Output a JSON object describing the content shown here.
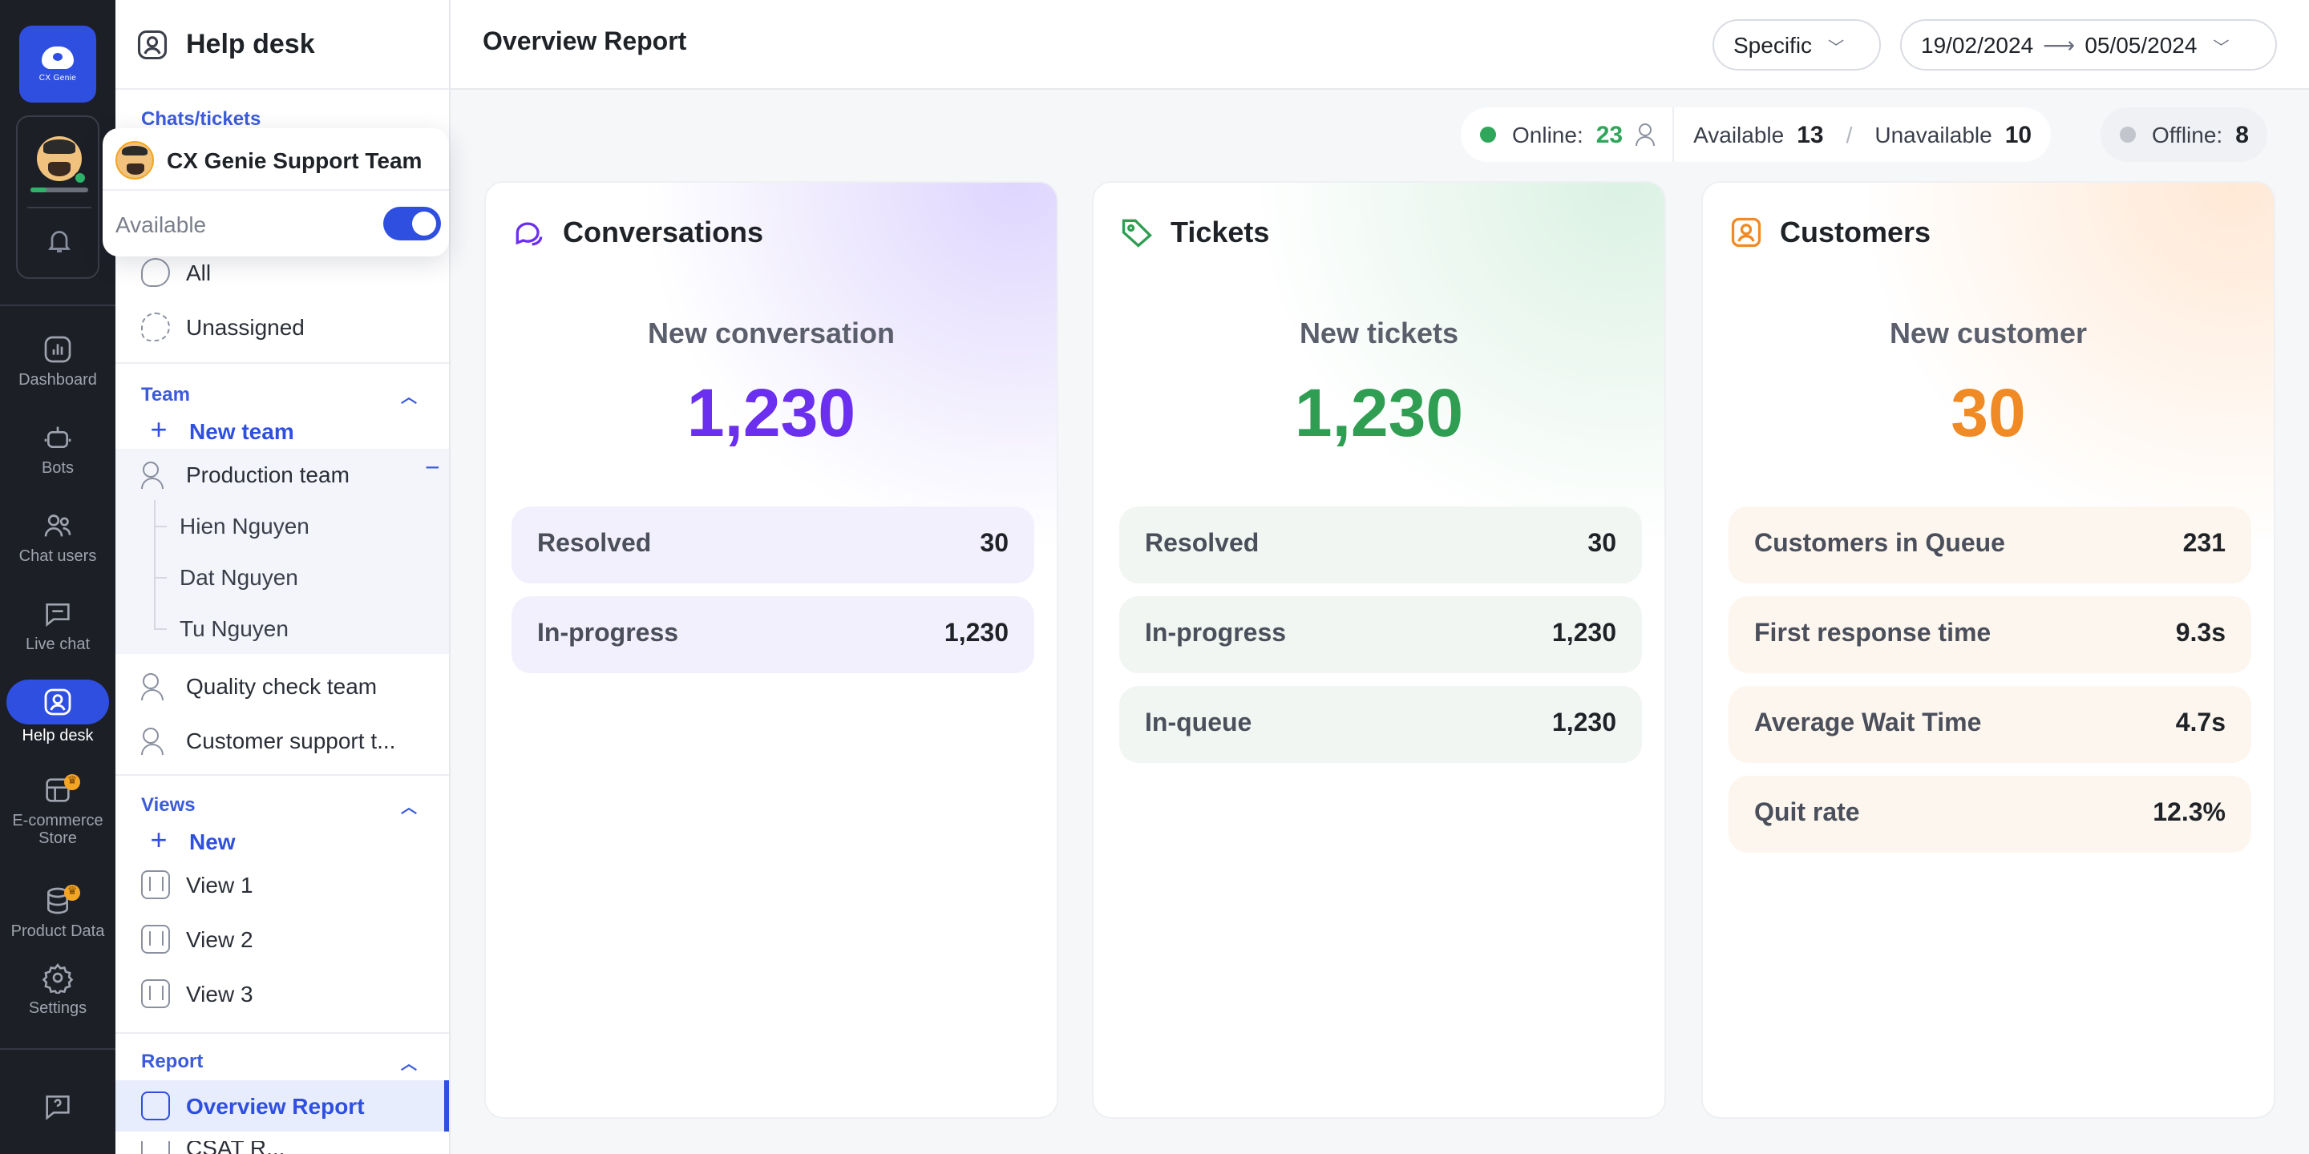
{
  "app": {
    "logo_text": "CX Genie",
    "brand_color": "#2f4fe0"
  },
  "rail": {
    "nav": [
      {
        "label": "Dashboard",
        "icon": "dashboard-icon"
      },
      {
        "label": "Bots",
        "icon": "bot-icon"
      },
      {
        "label": "Chat users",
        "icon": "users-icon"
      },
      {
        "label": "Live chat",
        "icon": "chat-icon"
      },
      {
        "label": "Help desk",
        "icon": "helpdesk-icon",
        "active": true
      },
      {
        "label": "E-commerce Store",
        "icon": "store-icon"
      },
      {
        "label": "Product Data",
        "icon": "database-icon"
      },
      {
        "label": "Settings",
        "icon": "gear-icon"
      }
    ]
  },
  "sidebar": {
    "title": "Help desk",
    "chats_section": "Chats/tickets",
    "chats_items": [
      "All",
      "Unassigned"
    ],
    "team_section": "Team",
    "new_team": "New team",
    "teams": [
      "Production team",
      "Quality check team",
      "Customer support t..."
    ],
    "members": [
      "Hien Nguyen",
      "Dat Nguyen",
      "Tu Nguyen"
    ],
    "views_section": "Views",
    "new_view": "New",
    "views": [
      "View 1",
      "View 2",
      "View 3"
    ],
    "report_section": "Report",
    "report_items": [
      "Overview Report",
      "CSAT R..."
    ]
  },
  "popover": {
    "team_name": "CX Genie Support Team",
    "availability_label": "Available",
    "available": true
  },
  "topbar": {
    "title": "Overview Report",
    "range_mode": "Specific",
    "date_from": "19/02/2024",
    "date_to": "05/05/2024"
  },
  "status": {
    "online_label": "Online:",
    "online": "23",
    "available_label": "Available",
    "available": "13",
    "unavailable_label": "Unavailable",
    "unavailable": "10",
    "offline_label": "Offline:",
    "offline": "8"
  },
  "cards": {
    "conversations": {
      "title": "Conversations",
      "subtitle": "New conversation",
      "value": "1,230",
      "rows": [
        {
          "label": "Resolved",
          "value": "30"
        },
        {
          "label": "In-progress",
          "value": "1,230"
        }
      ]
    },
    "tickets": {
      "title": "Tickets",
      "subtitle": "New tickets",
      "value": "1,230",
      "rows": [
        {
          "label": "Resolved",
          "value": "30"
        },
        {
          "label": "In-progress",
          "value": "1,230"
        },
        {
          "label": "In-queue",
          "value": "1,230"
        }
      ]
    },
    "customers": {
      "title": "Customers",
      "subtitle": "New customer",
      "value": "30",
      "rows": [
        {
          "label": "Customers in Queue",
          "value": "231"
        },
        {
          "label": "First response time",
          "value": "9.3s"
        },
        {
          "label": "Average Wait Time",
          "value": "4.7s"
        },
        {
          "label": "Quit rate",
          "value": "12.3%"
        }
      ]
    }
  },
  "colors": {
    "conversations": "#6b2ff0",
    "tickets": "#2f9e53",
    "customers": "#f08a24"
  }
}
